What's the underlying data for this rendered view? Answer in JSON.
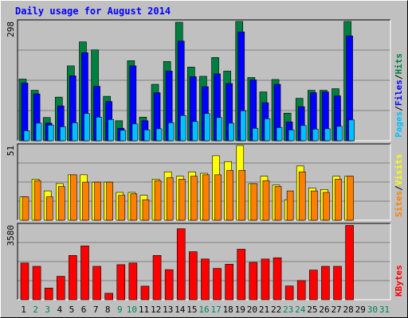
{
  "title": "Daily usage for August 2014",
  "colors": {
    "background": "#c0c0c0",
    "title_text": "#0000ff",
    "hits": "#008040",
    "files": "#0000ff",
    "pages": "#00c0ff",
    "visits": "#ffff00",
    "sites": "#ff8000",
    "kbytes": "#ff0000",
    "weekday_label": "#000000",
    "weekend_label": "#00805c"
  },
  "labels": {
    "pages": "Pages",
    "files": "Files",
    "hits": "Hits",
    "visits": "Visits",
    "sites": "Sites",
    "kbytes": "KBytes",
    "sep": "/"
  },
  "chart_data": [
    {
      "type": "bar",
      "title": "Daily usage for August 2014",
      "ymax_label": "298",
      "ylim": [
        0,
        298
      ],
      "x": [
        "1",
        "2",
        "3",
        "4",
        "5",
        "6",
        "7",
        "8",
        "9",
        "10",
        "11",
        "12",
        "13",
        "14",
        "15",
        "16",
        "17",
        "18",
        "19",
        "20",
        "21",
        "22",
        "23",
        "24",
        "25",
        "26",
        "27",
        "28",
        "29",
        "30",
        "31"
      ],
      "weekend_days": [
        "2",
        "3",
        "9",
        "10",
        "16",
        "17",
        "23",
        "24",
        "30",
        "31"
      ],
      "series": [
        {
          "name": "Hits",
          "key": "hits",
          "values": [
            154,
            126,
            58,
            109,
            187,
            247,
            227,
            111,
            50,
            200,
            59,
            141,
            198,
            296,
            184,
            161,
            208,
            174,
            298,
            158,
            122,
            153,
            69,
            106,
            126,
            126,
            130,
            298,
            0,
            0,
            0
          ]
        },
        {
          "name": "Files",
          "key": "files",
          "values": [
            144,
            117,
            44,
            87,
            162,
            220,
            136,
            98,
            31,
            187,
            50,
            120,
            174,
            249,
            160,
            135,
            167,
            143,
            272,
            152,
            95,
            141,
            47,
            85,
            120,
            122,
            112,
            262,
            0,
            0,
            0
          ]
        },
        {
          "name": "Pages",
          "key": "pages",
          "values": [
            25,
            44,
            39,
            35,
            45,
            68,
            59,
            53,
            26,
            42,
            27,
            30,
            45,
            63,
            48,
            68,
            58,
            44,
            75,
            31,
            55,
            33,
            27,
            38,
            29,
            30,
            36,
            52,
            0,
            0,
            0
          ]
        }
      ]
    },
    {
      "type": "bar",
      "ymax_label": "51",
      "ylim": [
        0,
        51
      ],
      "x": [
        "1",
        "2",
        "3",
        "4",
        "5",
        "6",
        "7",
        "8",
        "9",
        "10",
        "11",
        "12",
        "13",
        "14",
        "15",
        "16",
        "17",
        "18",
        "19",
        "20",
        "21",
        "22",
        "23",
        "24",
        "25",
        "26",
        "27",
        "28",
        "29",
        "30",
        "31"
      ],
      "series": [
        {
          "name": "Visits",
          "key": "visits",
          "values": [
            16,
            28,
            20,
            25,
            31,
            31,
            26,
            26,
            19,
            19,
            17,
            28,
            33,
            30,
            33,
            32,
            44,
            40,
            51,
            25,
            30,
            24,
            14,
            37,
            22,
            21,
            30,
            30,
            0,
            0,
            0
          ]
        },
        {
          "name": "Sites",
          "key": "sites",
          "values": [
            16,
            27,
            16,
            23,
            31,
            26,
            26,
            26,
            17,
            18,
            14,
            27,
            29,
            28,
            30,
            31,
            31,
            34,
            34,
            25,
            27,
            23,
            20,
            33,
            20,
            19,
            28,
            30,
            0,
            0,
            0
          ]
        }
      ]
    },
    {
      "type": "bar",
      "ymax_label": "3580",
      "ylim": [
        0,
        3580
      ],
      "x": [
        "1",
        "2",
        "3",
        "4",
        "5",
        "6",
        "7",
        "8",
        "9",
        "10",
        "11",
        "12",
        "13",
        "14",
        "15",
        "16",
        "17",
        "18",
        "19",
        "20",
        "21",
        "22",
        "23",
        "24",
        "25",
        "26",
        "27",
        "28",
        "29",
        "30",
        "31"
      ],
      "series": [
        {
          "name": "KBytes",
          "key": "kbytes",
          "values": [
            1760,
            1600,
            560,
            1120,
            2120,
            2580,
            1600,
            310,
            1680,
            1760,
            650,
            2120,
            1440,
            3400,
            2300,
            1950,
            1500,
            1700,
            2420,
            1790,
            1950,
            2010,
            660,
            920,
            1420,
            1600,
            1600,
            3560,
            0,
            0,
            0
          ]
        }
      ]
    }
  ]
}
